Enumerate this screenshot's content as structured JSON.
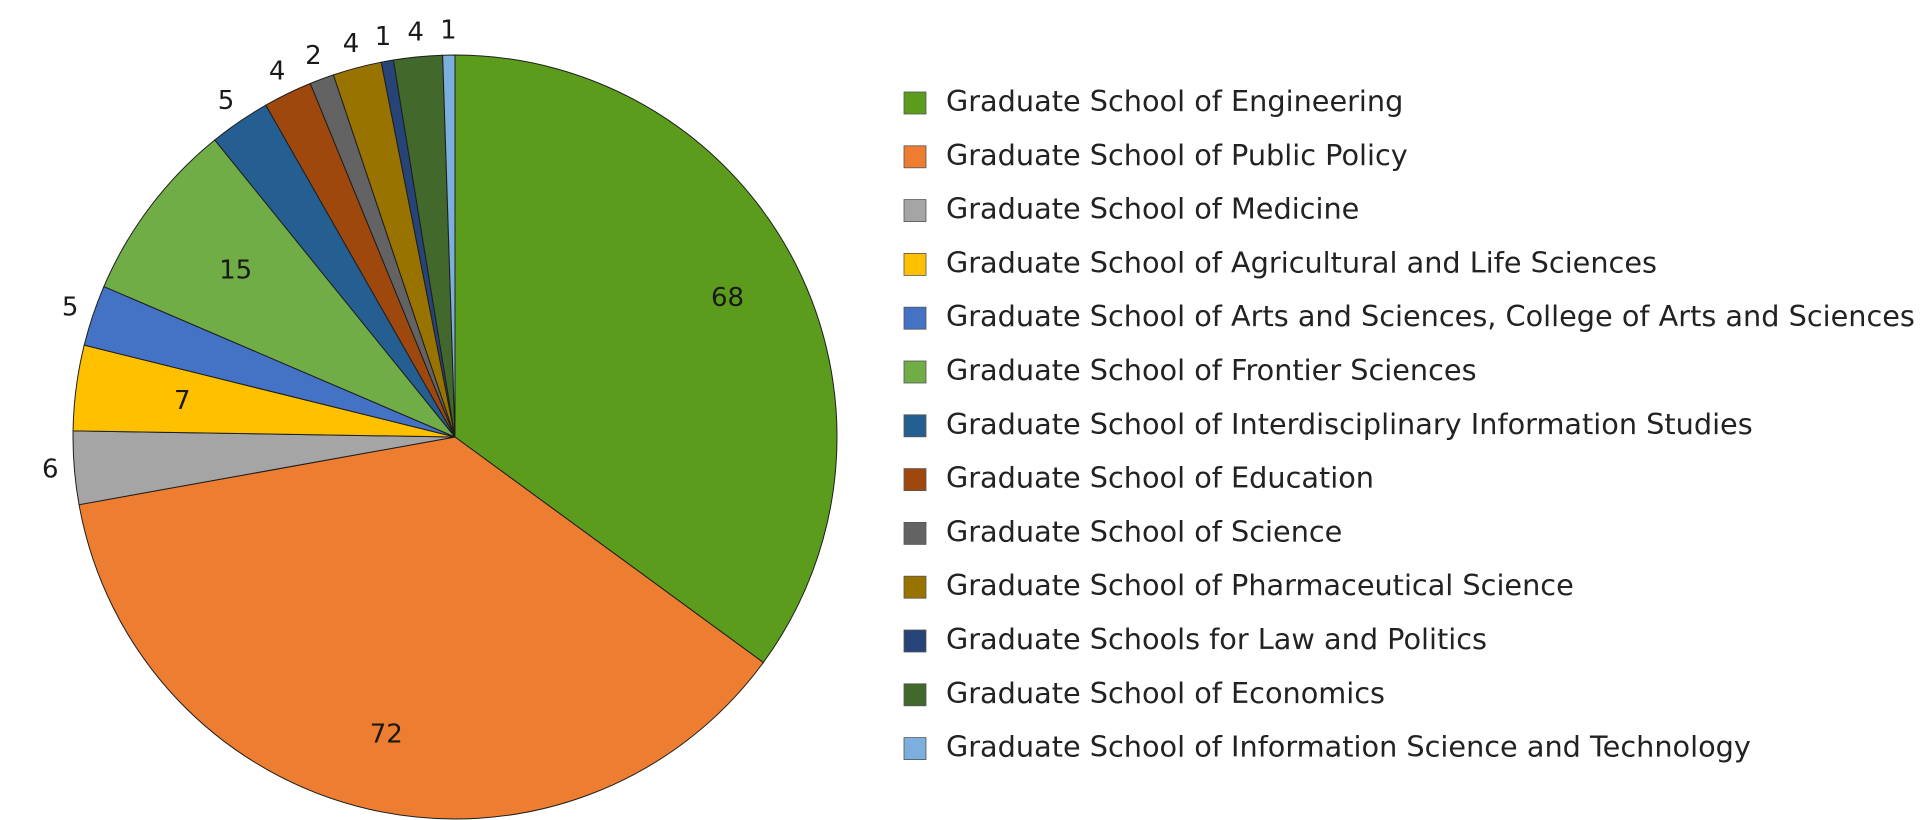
{
  "chart_data": {
    "type": "pie",
    "title": "",
    "start_angle_deg": 0,
    "direction": "clockwise",
    "slices": [
      {
        "label": "Graduate School of Engineering",
        "value": 68,
        "color": "#5b9c1c",
        "label_color": "#ffffff"
      },
      {
        "label": "Graduate School of Public Policy",
        "value": 72,
        "color": "#ed7d31",
        "label_color": "#ffffff"
      },
      {
        "label": "Graduate School of Medicine",
        "value": 6,
        "color": "#a5a5a5",
        "label_color": "#1a1a1a"
      },
      {
        "label": "Graduate School of Agricultural and Life Sciences",
        "value": 7,
        "color": "#ffc000",
        "label_color": "#1a1a1a"
      },
      {
        "label": "Graduate School of Arts and Sciences, College of Arts and Sciences",
        "value": 5,
        "color": "#4472c4",
        "label_color": "#1a1a1a"
      },
      {
        "label": "Graduate School of Frontier Sciences",
        "value": 15,
        "color": "#70ad47",
        "label_color": "#1a1a1a"
      },
      {
        "label": "Graduate School of Interdisciplinary Information Studies",
        "value": 5,
        "color": "#255e91",
        "label_color": "#1a1a1a"
      },
      {
        "label": "Graduate School of Education",
        "value": 4,
        "color": "#9e480e",
        "label_color": "#1a1a1a"
      },
      {
        "label": "Graduate School of Science",
        "value": 2,
        "color": "#636363",
        "label_color": "#1a1a1a"
      },
      {
        "label": "Graduate School of Pharmaceutical Science",
        "value": 4,
        "color": "#997300",
        "label_color": "#1a1a1a"
      },
      {
        "label": "Graduate Schools for Law and Politics",
        "value": 1,
        "color": "#264478",
        "label_color": "#1a1a1a"
      },
      {
        "label": "Graduate School of Economics",
        "value": 4,
        "color": "#43682b",
        "label_color": "#1a1a1a"
      },
      {
        "label": "Graduate School of Information Science and Technology",
        "value": 1,
        "color": "#7cafdd",
        "label_color": "#1a1a1a"
      }
    ],
    "legend_position": "right"
  }
}
